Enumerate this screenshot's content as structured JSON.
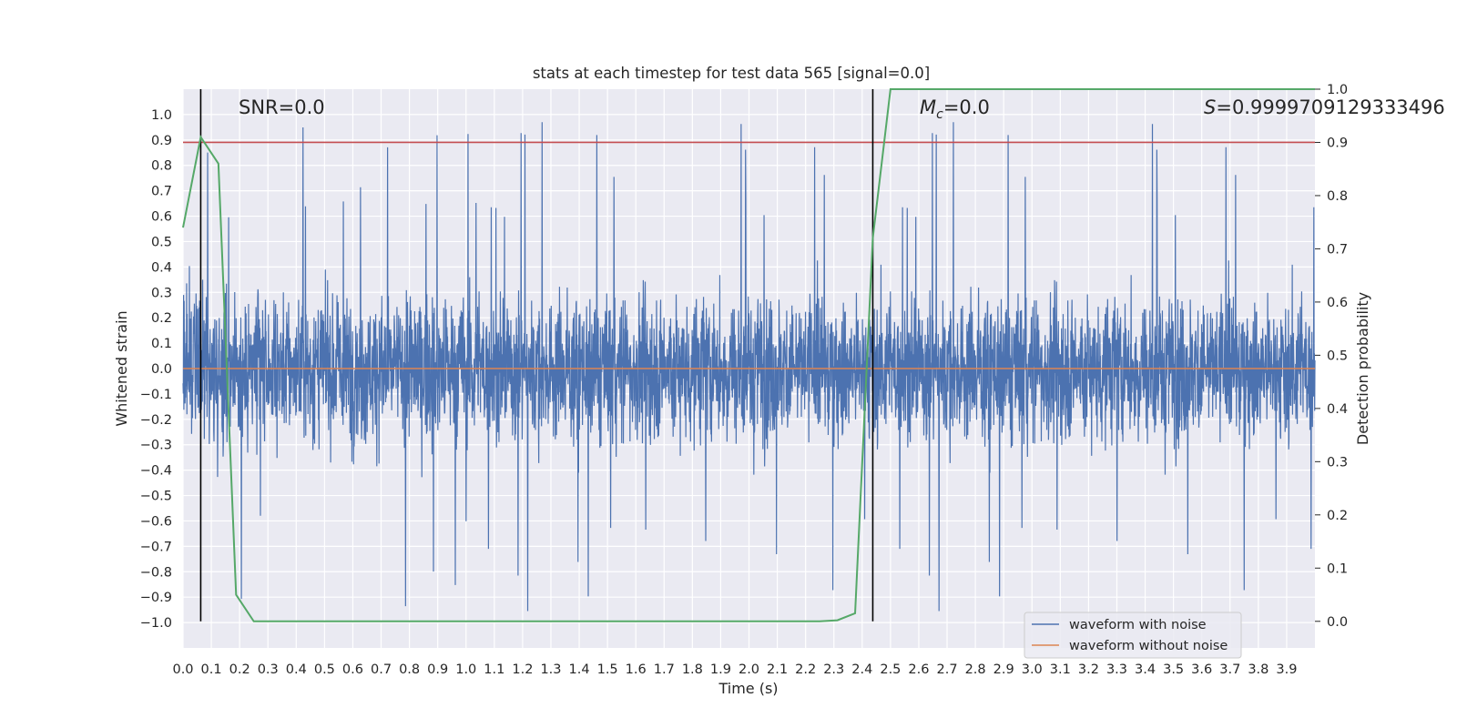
{
  "chart_data": {
    "type": "line",
    "title": "stats at each timestep for test data 565 [signal=0.0]",
    "xlabel": "Time (s)",
    "ylabel": "Whitened strain",
    "y2label": "Detection probability",
    "xlim": [
      0.0,
      4.0
    ],
    "ylim": [
      -1.1,
      1.1
    ],
    "y2lim": [
      -0.05,
      1.0
    ],
    "xticks": [
      "0.0",
      "0.1",
      "0.2",
      "0.3",
      "0.4",
      "0.5",
      "0.6",
      "0.7",
      "0.8",
      "0.9",
      "1.0",
      "1.1",
      "1.2",
      "1.3",
      "1.4",
      "1.5",
      "1.6",
      "1.7",
      "1.8",
      "1.9",
      "2.0",
      "2.1",
      "2.2",
      "2.3",
      "2.4",
      "2.5",
      "2.6",
      "2.7",
      "2.8",
      "2.9",
      "3.0",
      "3.1",
      "3.2",
      "3.3",
      "3.4",
      "3.5",
      "3.6",
      "3.7",
      "3.8",
      "3.9"
    ],
    "yticks": [
      "1.0",
      "0.9",
      "0.8",
      "0.7",
      "0.6",
      "0.5",
      "0.4",
      "0.3",
      "0.2",
      "0.1",
      "0.0",
      "−0.1",
      "−0.2",
      "−0.3",
      "−0.4",
      "−0.5",
      "−0.6",
      "−0.7",
      "−0.8",
      "−0.9",
      "−1.0"
    ],
    "y2ticks": [
      "1.0",
      "0.9",
      "0.8",
      "0.7",
      "0.6",
      "0.5",
      "0.4",
      "0.3",
      "0.2",
      "0.1",
      "0.0"
    ],
    "grid": true,
    "legend_position": "lower-right",
    "annotations": {
      "snr_label": "SNR=0.0",
      "mc_label": "=0.0",
      "mc_symbol": "M",
      "mc_subscript": "c",
      "s_label": "=0.9999709129333496",
      "s_symbol": "S"
    },
    "series": [
      {
        "name": "waveform with noise",
        "color": "#4c72b0",
        "style": "noise",
        "y_range": [
          -1.0,
          1.0
        ],
        "mean": 0.0,
        "samples": 4096
      },
      {
        "name": "waveform without noise",
        "color": "#dd8452",
        "x": [
          0.0,
          4.0
        ],
        "y": [
          0.0,
          0.0
        ]
      },
      {
        "color": "#55a868",
        "axis": "secondary",
        "x": [
          0.0,
          0.0625,
          0.125,
          0.1875,
          0.25,
          0.3125,
          0.375,
          0.4375,
          0.5,
          0.5625,
          0.625,
          0.6875,
          0.75,
          0.8125,
          0.875,
          0.9375,
          1.0,
          1.0625,
          1.125,
          1.1875,
          1.25,
          1.3125,
          1.375,
          1.4375,
          1.5,
          1.5625,
          1.625,
          1.6875,
          1.75,
          1.8125,
          1.875,
          1.9375,
          2.0,
          2.0625,
          2.125,
          2.1875,
          2.25,
          2.3125,
          2.375,
          2.4375,
          2.5,
          2.5625,
          2.625,
          2.6875,
          2.75,
          2.8125,
          2.875,
          2.9375,
          3.0,
          3.0625,
          3.125,
          3.1875,
          3.25,
          3.3125,
          3.375,
          3.4375,
          3.5,
          3.5625,
          3.625,
          3.6875,
          3.75,
          3.8125,
          3.875,
          3.9375,
          4.0
        ],
        "y": [
          0.74,
          0.91,
          0.86,
          0.05,
          0.0,
          0.0,
          0.0,
          0.0,
          0.0,
          0.0,
          0.0,
          0.0,
          0.0,
          0.0,
          0.0,
          0.0,
          0.0,
          0.0,
          0.0,
          0.0,
          0.0,
          0.0,
          0.0,
          0.0,
          0.0,
          0.0,
          0.0,
          0.0,
          0.0,
          0.0,
          0.0,
          0.0,
          0.0,
          0.0,
          0.0,
          0.0,
          0.0,
          0.002,
          0.015,
          0.72,
          1.0,
          1.0,
          1.0,
          1.0,
          1.0,
          1.0,
          1.0,
          1.0,
          1.0,
          1.0,
          1.0,
          1.0,
          1.0,
          1.0,
          1.0,
          1.0,
          1.0,
          1.0,
          1.0,
          1.0,
          1.0,
          1.0,
          1.0,
          1.0,
          1.0
        ]
      }
    ],
    "threshold": {
      "color": "#c44e52",
      "axis": "secondary",
      "y": 0.9
    },
    "vlines": [
      {
        "x": 0.0625,
        "color": "#000000"
      },
      {
        "x": 2.4375,
        "color": "#000000"
      }
    ]
  }
}
